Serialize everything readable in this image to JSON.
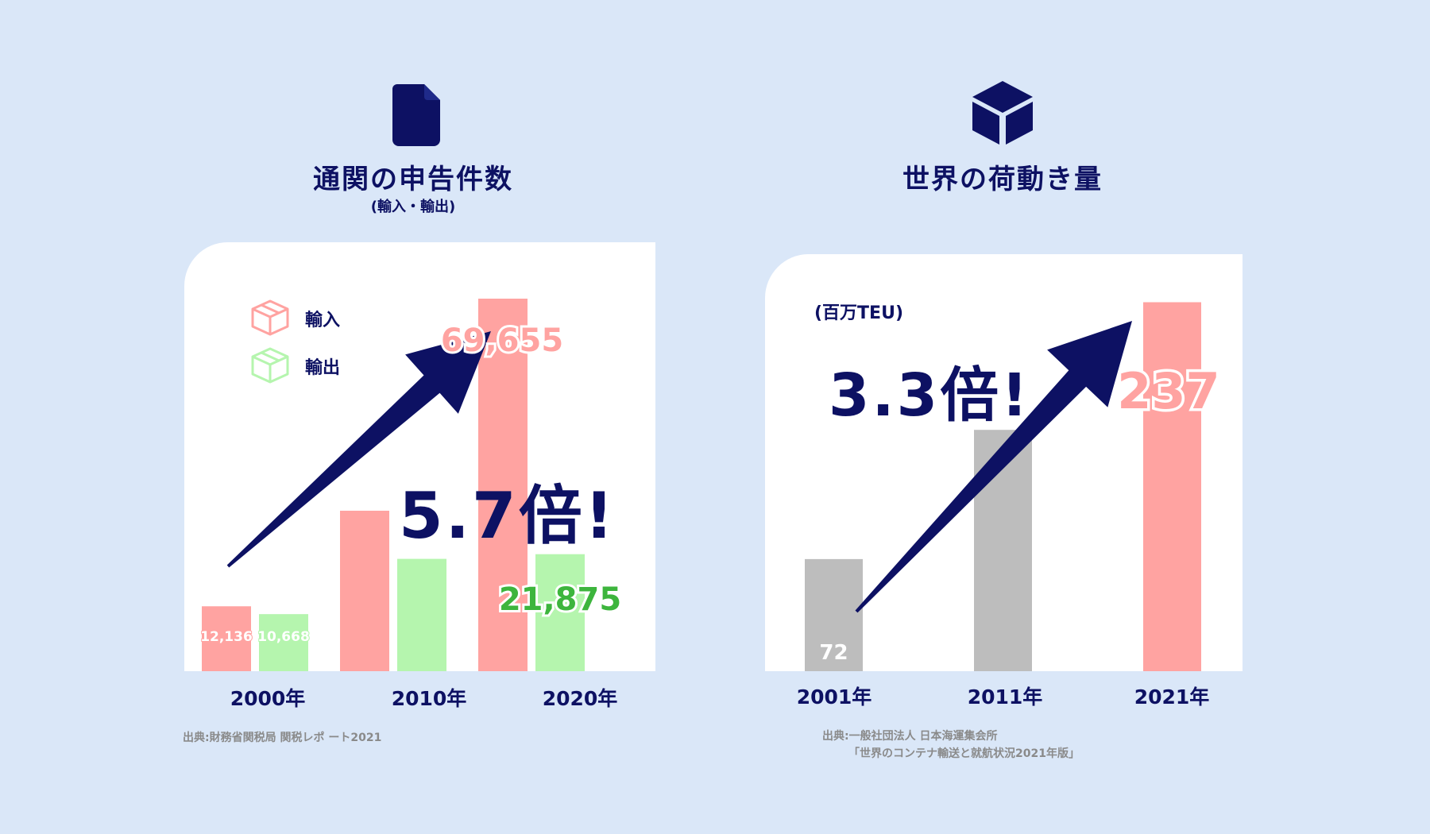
{
  "colors": {
    "background": "#dae7f8",
    "navy": "#0d1163",
    "import": "#ffa3a1",
    "export": "#b5f5ae",
    "export_label": "#3db53d",
    "gray": "#bdbdbd"
  },
  "left": {
    "icon": "document-icon",
    "title": "通関の申告件数",
    "subtitle": "(輸入・輸出)",
    "legend": [
      {
        "label": "輸入",
        "icon": "box-icon",
        "color": "#ffa3a1"
      },
      {
        "label": "輸出",
        "icon": "box-icon",
        "color": "#b5f5ae"
      }
    ],
    "callout": "5.7倍!",
    "source": "出典:財務省関税局 関税レポ ート2021"
  },
  "right": {
    "icon": "cube-icon",
    "title": "世界の荷動き量",
    "unit_label": "(百万TEU)",
    "callout": "3.3倍!",
    "source_line1": "出典:一般社団法人 日本海運集会所",
    "source_line2": "「世界のコンテナ輸送と就航状況2021年版」"
  },
  "chart_data": [
    {
      "type": "bar",
      "title": "通関の申告件数",
      "subtitle": "(輸入・輸出)",
      "categories": [
        "2000年",
        "2010年",
        "2020年"
      ],
      "series": [
        {
          "name": "輸入",
          "values": [
            12136,
            30000,
            69655
          ],
          "labels": [
            "12,136",
            "",
            "69,655"
          ]
        },
        {
          "name": "輸出",
          "values": [
            10668,
            21000,
            21875
          ],
          "labels": [
            "10,668",
            "",
            "21,875"
          ]
        }
      ],
      "ylim": [
        0,
        75000
      ],
      "annotation": "5.7倍!",
      "grid": false,
      "legend": "top-left"
    },
    {
      "type": "bar",
      "title": "世界の荷動き量",
      "ylabel": "(百万TEU)",
      "categories": [
        "2001年",
        "2011年",
        "2021年"
      ],
      "values": [
        72,
        155,
        237
      ],
      "labels": [
        "72",
        "",
        "237"
      ],
      "ylim": [
        0,
        250
      ],
      "annotation": "3.3倍!",
      "grid": false
    }
  ]
}
